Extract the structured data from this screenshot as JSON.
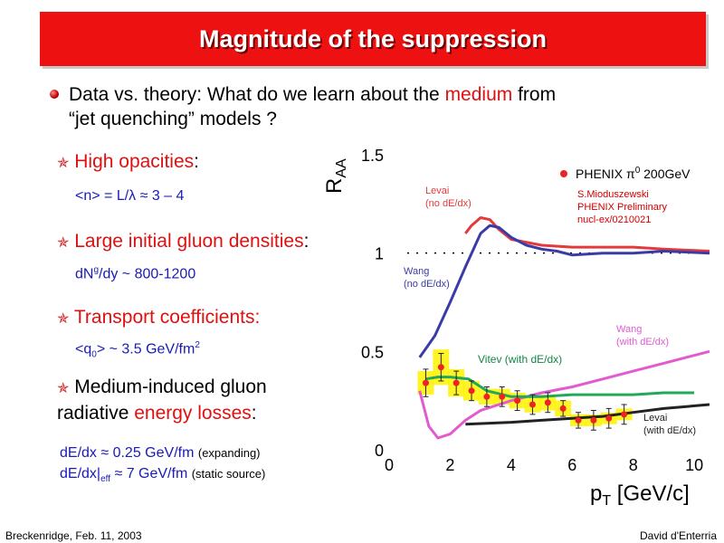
{
  "title": "Magnitude of the suppression",
  "intro": {
    "before": "Data vs. theory: What do we learn about the ",
    "highlight": "medium",
    "after": " from",
    "line2": "“jet quenching” models ?"
  },
  "bullets": [
    {
      "label": "High opacities",
      "suffix": ":",
      "detail": "<n> = L/λ ≈ 3 – 4"
    },
    {
      "label": "Large initial gluon densities",
      "suffix": ":",
      "detail_base": "dN",
      "detail_sup": "g",
      "detail_rest": "/dy ~ 800-1200"
    },
    {
      "label": "Transport coefficients:",
      "detail_a": "<q",
      "detail_sub": "0",
      "detail_b": "> ~ 3.5 GeV/fm",
      "detail_sup": "2"
    },
    {
      "label": "Medium-induced gluon",
      "line2_prefix": "radiative ",
      "line2_highlight": "energy losses",
      "line2_suffix": ":"
    }
  ],
  "formulas": {
    "line1_main": "dE/dx ≈ 0.25 GeV/fm ",
    "line1_note": "(expanding)",
    "line2_main_a": "dE/dx|",
    "line2_sub": "eff",
    "line2_main_b": " ≈ 7 GeV/fm ",
    "line2_note": "(static source)"
  },
  "footer": {
    "left": "Breckenridge, Feb. 11, 2003",
    "right": "David d'Enterria"
  },
  "colors": {
    "title_bg": "#ee1111",
    "accent_red": "#e01010",
    "blue_text": "#1a1ab8",
    "data_red": "#ee2222",
    "band_yellow": "#fff200"
  },
  "chart_data": {
    "type": "line",
    "xlabel": "p",
    "xlabel_sub": "T",
    "xlabel_unit": " [GeV/c]",
    "ylabel": "R",
    "ylabel_sub": "AA",
    "xlim": [
      0,
      10.5
    ],
    "ylim": [
      0,
      1.5
    ],
    "xticks": [
      "0",
      "2",
      "4",
      "6",
      "8",
      "10"
    ],
    "yticks": [
      "0",
      "0.5",
      "1",
      "1.5"
    ],
    "grid": false,
    "reference_line": 1.0,
    "legend": {
      "label": "PHENIX π",
      "sup": "0",
      "after": " 200GeV",
      "placement": "top-right"
    },
    "source_note": [
      "S.Mioduszewski",
      "PHENIX Preliminary",
      "nucl-ex/0210021"
    ],
    "series": [
      {
        "name": "Levai (no dE/dx)",
        "color": "#e33b3b",
        "x": [
          2.5,
          2.7,
          3.0,
          3.3,
          3.6,
          4.0,
          5.0,
          6.0,
          7.0,
          8.0,
          9.0,
          10.5
        ],
        "y": [
          1.1,
          1.14,
          1.18,
          1.17,
          1.12,
          1.07,
          1.04,
          1.03,
          1.03,
          1.03,
          1.02,
          1.01
        ]
      },
      {
        "name": "Wang (no dE/dx)",
        "color": "#3b3ba8",
        "x": [
          1.0,
          1.5,
          2.0,
          2.5,
          3.0,
          3.3,
          3.6,
          4.0,
          4.5,
          5.0,
          5.5,
          6.0,
          7.0,
          8.0,
          9.0,
          10.5
        ],
        "y": [
          0.47,
          0.58,
          0.75,
          0.93,
          1.1,
          1.14,
          1.13,
          1.08,
          1.04,
          1.02,
          1.01,
          0.99,
          1.0,
          1.0,
          1.01,
          1.0
        ]
      },
      {
        "name": "Wang (with dE/dx)",
        "color": "#e35ad0",
        "x": [
          1.0,
          1.3,
          1.6,
          2.0,
          2.5,
          3.0,
          4.0,
          5.0,
          6.0,
          7.0,
          8.0,
          9.0,
          10.5
        ],
        "y": [
          0.3,
          0.12,
          0.06,
          0.08,
          0.15,
          0.2,
          0.25,
          0.29,
          0.32,
          0.36,
          0.4,
          0.44,
          0.5
        ]
      },
      {
        "name": "Vitev (with dE/dx)",
        "color": "#22a85a",
        "x": [
          1.2,
          1.6,
          2.0,
          2.6,
          3.2,
          4.0,
          5.0,
          6.0,
          7.0,
          8.0,
          9.0,
          10.0
        ],
        "y": [
          0.36,
          0.37,
          0.37,
          0.36,
          0.3,
          0.27,
          0.27,
          0.28,
          0.28,
          0.28,
          0.29,
          0.29
        ]
      },
      {
        "name": "Levai (with dE/dx)",
        "color": "#222222",
        "x": [
          2.5,
          4.0,
          5.0,
          6.0,
          7.0,
          8.0,
          9.0,
          10.5
        ],
        "y": [
          0.13,
          0.14,
          0.15,
          0.16,
          0.17,
          0.19,
          0.21,
          0.23
        ]
      },
      {
        "name": "PHENIX π0 200GeV",
        "kind": "points",
        "color": "#ee2222",
        "x": [
          1.2,
          1.7,
          2.2,
          2.7,
          3.2,
          3.7,
          4.2,
          4.7,
          5.2,
          5.7,
          6.2,
          6.7,
          7.2,
          7.7
        ],
        "y": [
          0.34,
          0.42,
          0.34,
          0.3,
          0.27,
          0.27,
          0.25,
          0.23,
          0.24,
          0.21,
          0.15,
          0.15,
          0.16,
          0.18
        ],
        "err": [
          0.07,
          0.07,
          0.06,
          0.05,
          0.05,
          0.05,
          0.05,
          0.05,
          0.05,
          0.04,
          0.04,
          0.05,
          0.05,
          0.05
        ],
        "sys": [
          0.06,
          0.09,
          0.07,
          0.05,
          0.04,
          0.04,
          0.04,
          0.04,
          0.04,
          0.04,
          0.03,
          0.03,
          0.03,
          0.03
        ]
      }
    ]
  }
}
